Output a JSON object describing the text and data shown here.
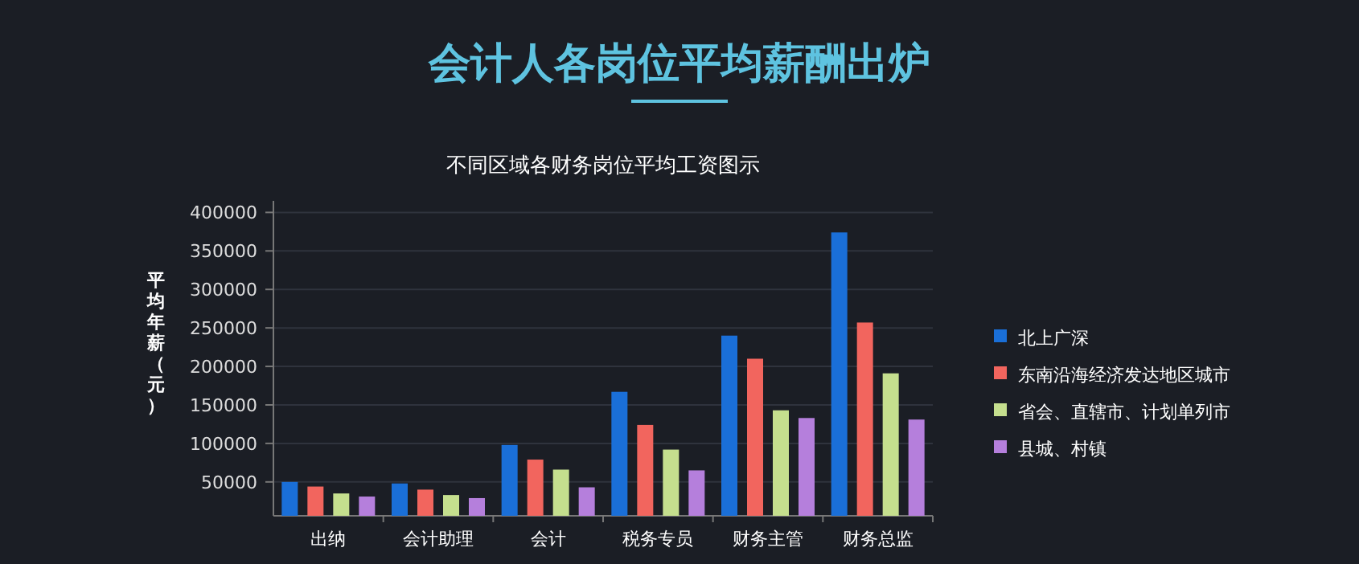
{
  "chart_data": {
    "type": "bar",
    "title": "会计人各岗位平均薪酬出炉",
    "subtitle": "不同区域各财务岗位平均工资图示",
    "ylabel": "平均年薪（元）",
    "categories": [
      "出纳",
      "会计助理",
      "会计",
      "税务专员",
      "财务主管",
      "财务总监"
    ],
    "series": [
      {
        "name": "北上广深",
        "color": "#1a6fd8",
        "values": [
          50000,
          48000,
          98000,
          167000,
          240000,
          374000
        ]
      },
      {
        "name": "东南沿海经济发达地区城市",
        "color": "#f2655e",
        "values": [
          44000,
          40000,
          79000,
          124000,
          210000,
          257000
        ]
      },
      {
        "name": "省会、直辖市、计划单列市",
        "color": "#c5df8e",
        "values": [
          35000,
          33000,
          66000,
          92000,
          143000,
          191000
        ]
      },
      {
        "name": "县城、村镇",
        "color": "#b57fdc",
        "values": [
          31000,
          29000,
          43000,
          65000,
          133000,
          131000
        ]
      }
    ],
    "ylim": [
      6000,
      415000
    ],
    "yticks": [
      50000,
      100000,
      150000,
      200000,
      250000,
      300000,
      350000,
      400000
    ],
    "grid": "y",
    "legend": "right"
  }
}
